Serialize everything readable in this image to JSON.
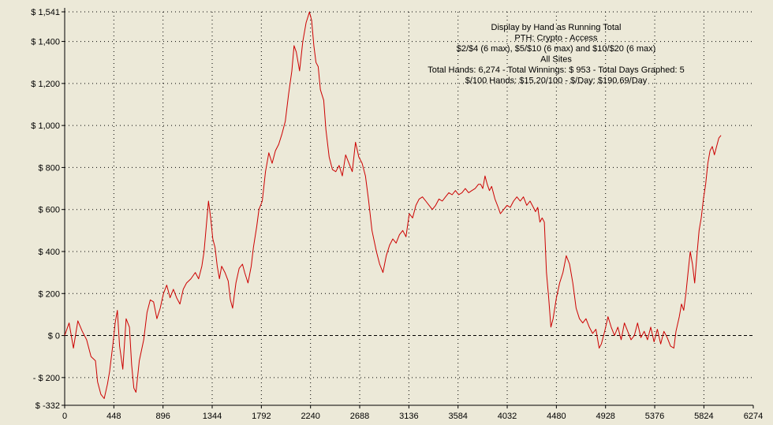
{
  "chart_data": {
    "type": "line",
    "title": "Display by Hand as Running Total",
    "info_lines": [
      "Display by Hand as Running Total",
      "PTH: Crypto - Access",
      "$2/$4 (6 max), $5/$10 (6 max) and $10/$20 (6 max)",
      "All Sites",
      "Total Hands: 6,274 - Total Winnings: $ 953 - Total Days Graphed: 5",
      "$/100 Hands: $15.20/100 - $/Day: $190.69/Day"
    ],
    "xlabel": "",
    "ylabel": "",
    "xlim": [
      0,
      6274
    ],
    "ylim": [
      -332,
      1541
    ],
    "x_ticks": [
      0,
      448,
      896,
      1344,
      1792,
      2240,
      2688,
      3136,
      3584,
      4032,
      4480,
      4928,
      5376,
      5824,
      6274
    ],
    "y_ticks": [
      {
        "value": -332,
        "label": "$ -332"
      },
      {
        "value": -200,
        "label": "- $ 200"
      },
      {
        "value": 0,
        "label": "$ 0"
      },
      {
        "value": 200,
        "label": "$ 200"
      },
      {
        "value": 400,
        "label": "$ 400"
      },
      {
        "value": 600,
        "label": "$ 600"
      },
      {
        "value": 800,
        "label": "$ 800"
      },
      {
        "value": 1000,
        "label": "$ 1,000"
      },
      {
        "value": 1200,
        "label": "$ 1,200"
      },
      {
        "value": 1400,
        "label": "$ 1,400"
      },
      {
        "value": 1541,
        "label": "$ 1,541"
      }
    ],
    "grid": true,
    "colors": {
      "line": "#CC0000",
      "background": "#ECE9D8",
      "axis": "#000000",
      "grid": "#000000"
    },
    "series": [
      {
        "values": [
          [
            0,
            0
          ],
          [
            40,
            60
          ],
          [
            80,
            -60
          ],
          [
            120,
            70
          ],
          [
            160,
            20
          ],
          [
            200,
            -20
          ],
          [
            240,
            -100
          ],
          [
            280,
            -120
          ],
          [
            300,
            -220
          ],
          [
            330,
            -280
          ],
          [
            360,
            -300
          ],
          [
            390,
            -230
          ],
          [
            410,
            -170
          ],
          [
            440,
            -40
          ],
          [
            460,
            60
          ],
          [
            480,
            120
          ],
          [
            500,
            -50
          ],
          [
            530,
            -160
          ],
          [
            560,
            80
          ],
          [
            590,
            40
          ],
          [
            610,
            -140
          ],
          [
            630,
            -250
          ],
          [
            650,
            -270
          ],
          [
            680,
            -120
          ],
          [
            720,
            -20
          ],
          [
            750,
            110
          ],
          [
            780,
            170
          ],
          [
            810,
            160
          ],
          [
            840,
            80
          ],
          [
            870,
            130
          ],
          [
            900,
            200
          ],
          [
            930,
            240
          ],
          [
            960,
            180
          ],
          [
            990,
            220
          ],
          [
            1020,
            180
          ],
          [
            1050,
            150
          ],
          [
            1080,
            220
          ],
          [
            1110,
            250
          ],
          [
            1150,
            270
          ],
          [
            1190,
            300
          ],
          [
            1220,
            270
          ],
          [
            1250,
            330
          ],
          [
            1270,
            400
          ],
          [
            1290,
            520
          ],
          [
            1310,
            640
          ],
          [
            1330,
            560
          ],
          [
            1350,
            460
          ],
          [
            1370,
            420
          ],
          [
            1390,
            330
          ],
          [
            1410,
            270
          ],
          [
            1430,
            330
          ],
          [
            1460,
            300
          ],
          [
            1490,
            260
          ],
          [
            1510,
            170
          ],
          [
            1530,
            130
          ],
          [
            1560,
            250
          ],
          [
            1590,
            320
          ],
          [
            1620,
            340
          ],
          [
            1640,
            300
          ],
          [
            1670,
            250
          ],
          [
            1700,
            330
          ],
          [
            1720,
            420
          ],
          [
            1750,
            520
          ],
          [
            1770,
            600
          ],
          [
            1800,
            640
          ],
          [
            1830,
            780
          ],
          [
            1860,
            870
          ],
          [
            1890,
            820
          ],
          [
            1920,
            880
          ],
          [
            1950,
            910
          ],
          [
            1980,
            960
          ],
          [
            2010,
            1020
          ],
          [
            2040,
            1150
          ],
          [
            2070,
            1260
          ],
          [
            2090,
            1380
          ],
          [
            2110,
            1350
          ],
          [
            2140,
            1260
          ],
          [
            2170,
            1400
          ],
          [
            2200,
            1490
          ],
          [
            2230,
            1540
          ],
          [
            2250,
            1500
          ],
          [
            2270,
            1380
          ],
          [
            2290,
            1300
          ],
          [
            2310,
            1280
          ],
          [
            2330,
            1170
          ],
          [
            2360,
            1120
          ],
          [
            2380,
            980
          ],
          [
            2410,
            850
          ],
          [
            2440,
            790
          ],
          [
            2470,
            780
          ],
          [
            2500,
            810
          ],
          [
            2530,
            760
          ],
          [
            2560,
            860
          ],
          [
            2590,
            820
          ],
          [
            2620,
            780
          ],
          [
            2650,
            920
          ],
          [
            2680,
            850
          ],
          [
            2710,
            820
          ],
          [
            2740,
            760
          ],
          [
            2770,
            640
          ],
          [
            2800,
            500
          ],
          [
            2840,
            400
          ],
          [
            2870,
            340
          ],
          [
            2900,
            300
          ],
          [
            2930,
            380
          ],
          [
            2960,
            430
          ],
          [
            2990,
            460
          ],
          [
            3020,
            440
          ],
          [
            3050,
            480
          ],
          [
            3080,
            500
          ],
          [
            3110,
            470
          ],
          [
            3140,
            580
          ],
          [
            3170,
            560
          ],
          [
            3200,
            620
          ],
          [
            3230,
            650
          ],
          [
            3260,
            660
          ],
          [
            3290,
            640
          ],
          [
            3320,
            620
          ],
          [
            3350,
            600
          ],
          [
            3380,
            620
          ],
          [
            3410,
            650
          ],
          [
            3440,
            640
          ],
          [
            3470,
            660
          ],
          [
            3500,
            680
          ],
          [
            3530,
            670
          ],
          [
            3560,
            690
          ],
          [
            3590,
            670
          ],
          [
            3620,
            680
          ],
          [
            3650,
            700
          ],
          [
            3680,
            680
          ],
          [
            3710,
            690
          ],
          [
            3740,
            700
          ],
          [
            3770,
            720
          ],
          [
            3790,
            720
          ],
          [
            3810,
            700
          ],
          [
            3830,
            760
          ],
          [
            3850,
            720
          ],
          [
            3870,
            690
          ],
          [
            3890,
            710
          ],
          [
            3920,
            650
          ],
          [
            3950,
            610
          ],
          [
            3970,
            580
          ],
          [
            4000,
            600
          ],
          [
            4030,
            620
          ],
          [
            4060,
            610
          ],
          [
            4090,
            640
          ],
          [
            4120,
            660
          ],
          [
            4150,
            640
          ],
          [
            4180,
            660
          ],
          [
            4210,
            620
          ],
          [
            4240,
            640
          ],
          [
            4270,
            610
          ],
          [
            4290,
            590
          ],
          [
            4310,
            610
          ],
          [
            4330,
            540
          ],
          [
            4350,
            560
          ],
          [
            4370,
            540
          ],
          [
            4390,
            300
          ],
          [
            4410,
            180
          ],
          [
            4430,
            40
          ],
          [
            4450,
            80
          ],
          [
            4480,
            180
          ],
          [
            4510,
            250
          ],
          [
            4540,
            300
          ],
          [
            4570,
            380
          ],
          [
            4600,
            340
          ],
          [
            4630,
            250
          ],
          [
            4660,
            130
          ],
          [
            4690,
            80
          ],
          [
            4720,
            60
          ],
          [
            4750,
            80
          ],
          [
            4780,
            40
          ],
          [
            4810,
            10
          ],
          [
            4840,
            30
          ],
          [
            4870,
            -60
          ],
          [
            4890,
            -40
          ],
          [
            4920,
            20
          ],
          [
            4950,
            90
          ],
          [
            4980,
            40
          ],
          [
            5010,
            0
          ],
          [
            5040,
            40
          ],
          [
            5070,
            -20
          ],
          [
            5100,
            60
          ],
          [
            5130,
            20
          ],
          [
            5160,
            -20
          ],
          [
            5190,
            0
          ],
          [
            5220,
            60
          ],
          [
            5250,
            -10
          ],
          [
            5280,
            20
          ],
          [
            5310,
            -20
          ],
          [
            5340,
            40
          ],
          [
            5370,
            -30
          ],
          [
            5400,
            30
          ],
          [
            5430,
            -40
          ],
          [
            5460,
            20
          ],
          [
            5490,
            -10
          ],
          [
            5520,
            -50
          ],
          [
            5550,
            -60
          ],
          [
            5570,
            20
          ],
          [
            5600,
            90
          ],
          [
            5620,
            150
          ],
          [
            5640,
            120
          ],
          [
            5660,
            200
          ],
          [
            5680,
            300
          ],
          [
            5700,
            400
          ],
          [
            5720,
            340
          ],
          [
            5740,
            250
          ],
          [
            5760,
            380
          ],
          [
            5780,
            500
          ],
          [
            5800,
            560
          ],
          [
            5820,
            650
          ],
          [
            5840,
            720
          ],
          [
            5860,
            820
          ],
          [
            5880,
            880
          ],
          [
            5900,
            900
          ],
          [
            5920,
            860
          ],
          [
            5940,
            900
          ],
          [
            5960,
            940
          ],
          [
            5980,
            953
          ]
        ]
      }
    ]
  }
}
